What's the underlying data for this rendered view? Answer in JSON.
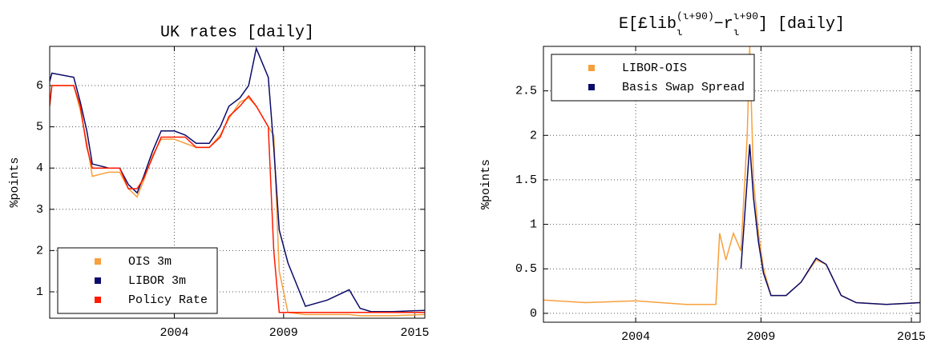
{
  "chart_data": [
    {
      "type": "line",
      "title": "UK rates [daily]",
      "ylabel": "%points",
      "x": [
        1998.3,
        1998.4,
        1999.4,
        1999.7,
        2000.0,
        2000.25,
        2001.0,
        2001.5,
        2001.9,
        2002.3,
        2002.6,
        2003.0,
        2003.4,
        2004.0,
        2004.5,
        2005.0,
        2005.6,
        2006.1,
        2006.5,
        2007.0,
        2007.4,
        2007.75,
        2008.3,
        2008.55,
        2008.8,
        2009.2,
        2010.0,
        2011.0,
        2012.0,
        2012.5,
        2013.0,
        2014.0,
        2015.45
      ],
      "series": [
        {
          "name": "OIS 3m",
          "color": "#f7a03c",
          "values": [
            5.6,
            6.0,
            6.0,
            5.4,
            4.6,
            3.8,
            3.9,
            3.9,
            3.5,
            3.3,
            3.7,
            4.3,
            4.7,
            4.7,
            4.6,
            4.5,
            4.5,
            4.8,
            5.2,
            5.6,
            5.7,
            5.5,
            5.0,
            4.8,
            1.5,
            0.5,
            0.45,
            0.45,
            0.45,
            0.42,
            0.42,
            0.42,
            0.45
          ]
        },
        {
          "name": "LIBOR 3m",
          "color": "#0b0b6b",
          "values": [
            6.1,
            6.3,
            6.2,
            5.6,
            4.9,
            4.1,
            4.0,
            4.0,
            3.6,
            3.4,
            3.8,
            4.4,
            4.9,
            4.9,
            4.8,
            4.6,
            4.6,
            5.0,
            5.5,
            5.7,
            6.0,
            6.9,
            6.2,
            4.5,
            2.5,
            1.7,
            0.65,
            0.8,
            1.05,
            0.6,
            0.52,
            0.52,
            0.55
          ]
        },
        {
          "name": "Policy Rate",
          "color": "#ff1a00",
          "values": [
            5.5,
            6.0,
            6.0,
            5.5,
            4.5,
            4.0,
            4.0,
            4.0,
            3.5,
            3.5,
            3.75,
            4.25,
            4.75,
            4.75,
            4.75,
            4.5,
            4.5,
            4.75,
            5.25,
            5.5,
            5.75,
            5.5,
            5.0,
            2.0,
            0.5,
            0.5,
            0.5,
            0.5,
            0.5,
            0.5,
            0.5,
            0.5,
            0.5
          ]
        }
      ],
      "xlim": [
        1998.3,
        2015.46
      ],
      "xticks": [
        2004,
        2009,
        2015
      ],
      "ylim": [
        0.36,
        6.95
      ],
      "yticks": [
        1,
        2,
        3,
        4,
        5,
        6
      ],
      "grid": true,
      "legend": "lower left"
    },
    {
      "type": "line",
      "title": [
        "E[£lib",
        "(ι+90)",
        "ι",
        "−r",
        "ι+90",
        "ι",
        "] [daily]"
      ],
      "ylabel": "%points",
      "x": [
        2000.3,
        2002.0,
        2004.0,
        2006.0,
        2007.2,
        2007.35,
        2007.6,
        2007.9,
        2008.2,
        2008.45,
        2008.55,
        2008.7,
        2008.9,
        2009.1,
        2009.4,
        2010.0,
        2010.6,
        2011.2,
        2011.6,
        2012.2,
        2012.8,
        2014.0,
        2015.35
      ],
      "series": [
        {
          "name": "LIBOR-OIS",
          "color": "#f7a03c",
          "values": [
            0.15,
            0.12,
            0.14,
            0.1,
            0.1,
            0.9,
            0.6,
            0.9,
            0.7,
            2.0,
            3.0,
            1.5,
            0.9,
            0.5,
            0.2,
            0.2,
            0.35,
            0.6,
            0.55,
            0.2,
            0.12,
            0.1,
            0.12
          ]
        },
        {
          "name": "Basis Swap Spread",
          "color": "#0b0b6b",
          "values": [
            null,
            null,
            null,
            null,
            null,
            null,
            null,
            null,
            0.5,
            1.5,
            1.9,
            1.3,
            0.8,
            0.45,
            0.2,
            0.2,
            0.35,
            0.62,
            0.55,
            0.2,
            0.12,
            0.1,
            0.12
          ]
        }
      ],
      "xlim": [
        2000.32,
        2015.35
      ],
      "xticks": [
        2004,
        2009,
        2015
      ],
      "ylim": [
        -0.1,
        3.0
      ],
      "yticks": [
        0,
        0.5,
        1,
        1.5,
        2,
        2.5
      ],
      "grid": true,
      "legend": "upper left"
    }
  ]
}
